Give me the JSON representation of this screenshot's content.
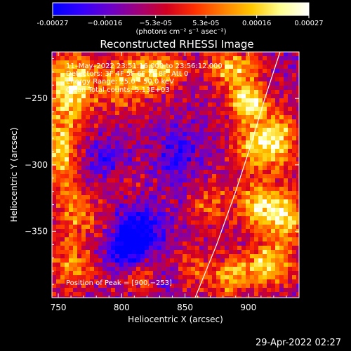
{
  "chart_data": {
    "type": "heatmap",
    "title": "Reconstructed RHESSI Image",
    "xlabel": "Heliocentric X (arcsec)",
    "ylabel": "Heliocentric Y (arcsec)",
    "xlim": [
      745,
      940
    ],
    "ylim": [
      -400,
      -215
    ],
    "x_ticks": [
      750,
      800,
      850,
      900
    ],
    "y_ticks": [
      -250,
      -300,
      -350
    ],
    "x_tick_labels": [
      "750",
      "800",
      "850",
      "900"
    ],
    "y_tick_labels": [
      "−250",
      "−300",
      "−350"
    ],
    "colorbar": {
      "min": -0.00027,
      "max": 0.00027,
      "ticks": [
        -0.00027,
        -0.00016,
        -5.3e-05,
        5.3e-05,
        0.00016,
        0.00027
      ],
      "tick_labels": [
        "-0.00027",
        "−0.00016",
        "−5.3e-05",
        "5.3e-05",
        "0.00016",
        "0.00027"
      ],
      "units_label": "(photons cm⁻² s⁻¹ asec⁻²)",
      "colors": [
        "#0000ff",
        "#3300ff",
        "#6a00cc",
        "#a0007a",
        "#d20020",
        "#ff3000",
        "#ff8000",
        "#ffc800",
        "#ffff90",
        "#ffffff"
      ]
    },
    "annotations": {
      "time_range": "11–May–2022 23:51:16.000 to 23:56:12.000",
      "detectors": "Detectors: 3F 4F 5F 6F 7F 8F, Att 0",
      "energy": "Energy Range: 25.0 – 50.0 keV",
      "algorithm": "Clean     Total counts: 5.13E+03",
      "peak": "Position of Peak = [900,−253]"
    },
    "limb_curve": {
      "description": "solar limb arc",
      "points": [
        [
          858,
          -400
        ],
        [
          875,
          -360
        ],
        [
          890,
          -320
        ],
        [
          902,
          -285
        ],
        [
          913,
          -250
        ],
        [
          925,
          -215
        ]
      ]
    },
    "blobs": [
      {
        "x": 760,
        "y": -240,
        "sx": 12,
        "sy": 18,
        "v": 1.15
      },
      {
        "x": 752,
        "y": -290,
        "sx": 10,
        "sy": 20,
        "v": 1.0
      },
      {
        "x": 765,
        "y": -335,
        "sx": 12,
        "sy": 12,
        "v": 0.75
      },
      {
        "x": 760,
        "y": -375,
        "sx": 14,
        "sy": 14,
        "v": 0.7
      },
      {
        "x": 800,
        "y": -240,
        "sx": 18,
        "sy": 14,
        "v": 0.75
      },
      {
        "x": 830,
        "y": -228,
        "sx": 16,
        "sy": 10,
        "v": 0.9
      },
      {
        "x": 800,
        "y": -310,
        "sx": 10,
        "sy": 8,
        "v": 0.45
      },
      {
        "x": 820,
        "y": -385,
        "sx": 14,
        "sy": 8,
        "v": 0.55
      },
      {
        "x": 855,
        "y": -380,
        "sx": 10,
        "sy": 12,
        "v": 0.55
      },
      {
        "x": 900,
        "y": -253,
        "sx": 10,
        "sy": 9,
        "v": 1.35
      },
      {
        "x": 888,
        "y": -228,
        "sx": 14,
        "sy": 10,
        "v": 1.0
      },
      {
        "x": 905,
        "y": -285,
        "sx": 12,
        "sy": 14,
        "v": 0.95
      },
      {
        "x": 925,
        "y": -280,
        "sx": 10,
        "sy": 16,
        "v": 0.9
      },
      {
        "x": 908,
        "y": -330,
        "sx": 12,
        "sy": 12,
        "v": 1.1
      },
      {
        "x": 930,
        "y": -340,
        "sx": 10,
        "sy": 14,
        "v": 1.0
      },
      {
        "x": 915,
        "y": -375,
        "sx": 14,
        "sy": 12,
        "v": 1.05
      },
      {
        "x": 885,
        "y": -385,
        "sx": 10,
        "sy": 10,
        "v": 0.85
      },
      {
        "x": 870,
        "y": -330,
        "sx": 10,
        "sy": 14,
        "v": 0.6
      },
      {
        "x": 815,
        "y": -350,
        "sx": 12,
        "sy": 12,
        "v": -0.9
      },
      {
        "x": 800,
        "y": -365,
        "sx": 10,
        "sy": 10,
        "v": -0.8
      },
      {
        "x": 790,
        "y": -300,
        "sx": 12,
        "sy": 12,
        "v": -0.55
      },
      {
        "x": 845,
        "y": -295,
        "sx": 12,
        "sy": 14,
        "v": -0.5
      },
      {
        "x": 835,
        "y": -385,
        "sx": 10,
        "sy": 8,
        "v": -0.55
      }
    ]
  },
  "footer_date": "29-Apr-2022 02:27"
}
